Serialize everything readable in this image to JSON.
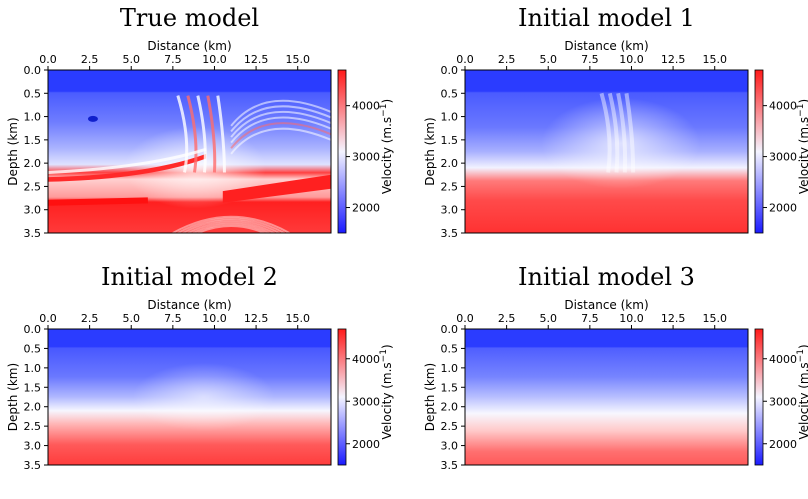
{
  "chart_data": [
    {
      "type": "heatmap",
      "title": "True model",
      "xlabel": "Distance (km)",
      "ylabel": "Depth (km)",
      "x_ticks": [
        "0.0",
        "2.5",
        "5.0",
        "7.5",
        "10.0",
        "12.5",
        "15.0"
      ],
      "y_ticks": [
        "0.0",
        "0.5",
        "1.0",
        "1.5",
        "2.0",
        "2.5",
        "3.0",
        "3.5"
      ],
      "colorbar": {
        "label": "Velocity (m.s",
        "label_sup": "−1",
        "label_close": ")",
        "ticks": [
          "2000",
          "3000",
          "4000"
        ],
        "range": [
          1500,
          4700
        ]
      },
      "xlim": [
        0,
        17
      ],
      "ylim": [
        0,
        3.5
      ]
    },
    {
      "type": "heatmap",
      "title": "Initial model 1",
      "xlabel": "Distance (km)",
      "ylabel": "Depth (km)",
      "x_ticks": [
        "0.0",
        "2.5",
        "5.0",
        "7.5",
        "10.0",
        "12.5",
        "15.0"
      ],
      "y_ticks": [
        "0.0",
        "0.5",
        "1.0",
        "1.5",
        "2.0",
        "2.5",
        "3.0",
        "3.5"
      ],
      "colorbar": {
        "label": "Velocity (m.s",
        "label_sup": "−1",
        "label_close": ")",
        "ticks": [
          "2000",
          "3000",
          "4000"
        ],
        "range": [
          1500,
          4700
        ]
      },
      "xlim": [
        0,
        17
      ],
      "ylim": [
        0,
        3.5
      ]
    },
    {
      "type": "heatmap",
      "title": "Initial model 2",
      "xlabel": "Distance (km)",
      "ylabel": "Depth (km)",
      "x_ticks": [
        "0.0",
        "2.5",
        "5.0",
        "7.5",
        "10.0",
        "12.5",
        "15.0"
      ],
      "y_ticks": [
        "0.0",
        "0.5",
        "1.0",
        "1.5",
        "2.0",
        "2.5",
        "3.0",
        "3.5"
      ],
      "colorbar": {
        "label": "Velocity (m.s",
        "label_sup": "−1",
        "label_close": ")",
        "ticks": [
          "2000",
          "3000",
          "4000"
        ],
        "range": [
          1500,
          4700
        ]
      },
      "xlim": [
        0,
        17
      ],
      "ylim": [
        0,
        3.5
      ]
    },
    {
      "type": "heatmap",
      "title": "Initial model 3",
      "xlabel": "Distance (km)",
      "ylabel": "Depth (km)",
      "x_ticks": [
        "0.0",
        "2.5",
        "5.0",
        "7.5",
        "10.0",
        "12.5",
        "15.0"
      ],
      "y_ticks": [
        "0.0",
        "0.5",
        "1.0",
        "1.5",
        "2.0",
        "2.5",
        "3.0",
        "3.5"
      ],
      "colorbar": {
        "label": "Velocity (m.s",
        "label_sup": "−1",
        "label_close": ")",
        "ticks": [
          "2000",
          "3000",
          "4000"
        ],
        "range": [
          1500,
          4700
        ]
      },
      "xlim": [
        0,
        17
      ],
      "ylim": [
        0,
        3.5
      ]
    }
  ],
  "colors": {
    "low": "#1f26ff",
    "mid": "#ffffff",
    "high": "#ff1f1f"
  }
}
